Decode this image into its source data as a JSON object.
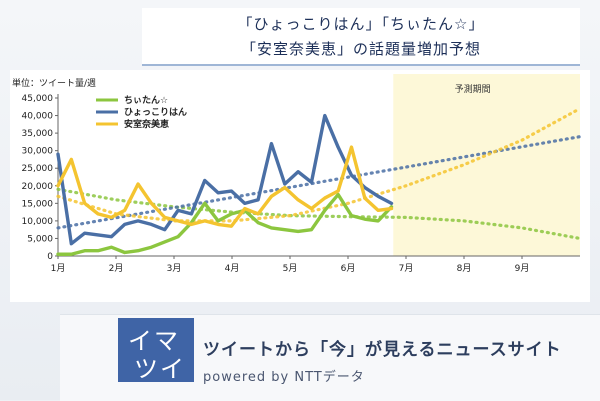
{
  "header": {
    "title_line1": "「ひょっこりはん」「ちぃたん☆」",
    "title_line2": "「安室奈美恵」の話題量増加予想"
  },
  "footer": {
    "logo_line1": "イマ",
    "logo_line2": "ツイ",
    "tagline": "ツイートから「今」が見えるニュースサイト",
    "powered": "powered by  NTTデータ"
  },
  "chart_data": {
    "type": "line",
    "unit_label": "単位：ツイート量/週",
    "forecast_label": "予測期間",
    "ylim": [
      0,
      45000
    ],
    "yticks": [
      "0",
      "5,000",
      "10,000",
      "15,000",
      "20,000",
      "25,000",
      "30,000",
      "35,000",
      "40,000",
      "45,000"
    ],
    "xlim": [
      1,
      10
    ],
    "xticks": [
      "1月",
      "2月",
      "3月",
      "4月",
      "5月",
      "6月",
      "7月",
      "8月",
      "9月"
    ],
    "forecast_start": 6.78,
    "grid": false,
    "legend_position": "top-left",
    "series": [
      {
        "name": "ちぃたん☆",
        "color": "#8cc63f",
        "x": [
          1,
          1.23,
          1.46,
          1.69,
          1.92,
          2.15,
          2.38,
          2.61,
          2.84,
          3.07,
          3.3,
          3.53,
          3.76,
          3.99,
          4.22,
          4.45,
          4.68,
          4.91,
          5.14,
          5.37,
          5.6,
          5.83,
          6.06,
          6.29,
          6.52,
          6.75
        ],
        "values": [
          500,
          500,
          1500,
          1500,
          2500,
          1000,
          1500,
          2500,
          4000,
          5500,
          9500,
          15000,
          10000,
          12000,
          13000,
          9500,
          8000,
          7500,
          7000,
          7500,
          13000,
          17500,
          11500,
          10500,
          10000,
          14000
        ],
        "trend": {
          "x": [
            1,
            2,
            3,
            4,
            5,
            6,
            7,
            8,
            9,
            10
          ],
          "values": [
            19000,
            16000,
            14000,
            12500,
            11500,
            11200,
            11000,
            10000,
            8000,
            5000
          ]
        }
      },
      {
        "name": "ひょっこりはん",
        "color": "#4a6fa5",
        "x": [
          1,
          1.23,
          1.46,
          1.69,
          1.92,
          2.15,
          2.38,
          2.61,
          2.84,
          3.07,
          3.3,
          3.53,
          3.76,
          3.99,
          4.22,
          4.45,
          4.68,
          4.91,
          5.14,
          5.37,
          5.6,
          5.83,
          6.06,
          6.29,
          6.52,
          6.75
        ],
        "values": [
          29000,
          3500,
          6500,
          6000,
          5500,
          9000,
          10000,
          9000,
          7500,
          13000,
          12000,
          21500,
          18000,
          18500,
          15000,
          16000,
          32000,
          20500,
          24000,
          21000,
          40000,
          31000,
          23000,
          19500,
          17000,
          15000
        ],
        "trend": {
          "x": [
            1,
            10
          ],
          "values": [
            8000,
            34000
          ]
        }
      },
      {
        "name": "安室奈美恵",
        "color": "#f4c430",
        "x": [
          1,
          1.23,
          1.46,
          1.69,
          1.92,
          2.15,
          2.38,
          2.61,
          2.84,
          3.07,
          3.3,
          3.53,
          3.76,
          3.99,
          4.22,
          4.45,
          4.68,
          4.91,
          5.14,
          5.37,
          5.6,
          5.83,
          6.06,
          6.29,
          6.52,
          6.75
        ],
        "values": [
          20000,
          27500,
          15000,
          12000,
          11000,
          13000,
          20500,
          15000,
          11000,
          10000,
          9000,
          10000,
          9000,
          8500,
          13500,
          12000,
          17000,
          19500,
          16000,
          13500,
          16500,
          18500,
          31000,
          16500,
          13000,
          13500
        ],
        "trend": {
          "x": [
            1,
            2,
            3,
            4,
            5,
            6,
            7,
            8,
            9,
            10
          ],
          "values": [
            17000,
            12000,
            10000,
            10000,
            11500,
            15000,
            20000,
            26000,
            33000,
            42000
          ]
        }
      }
    ]
  }
}
